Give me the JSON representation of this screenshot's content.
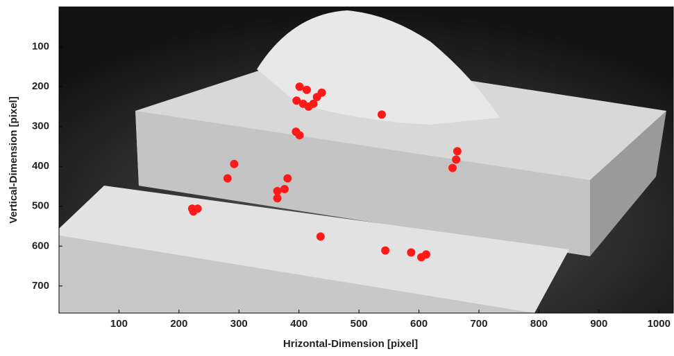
{
  "chart_data": {
    "type": "scatter",
    "x_label": "Hrizontal-Dimension [pixel]",
    "y_label": "Vertical-Dimension [pixel]",
    "xlim": [
      0,
      1024
    ],
    "ylim": [
      768,
      0
    ],
    "xticks": [
      100,
      200,
      300,
      400,
      500,
      600,
      700,
      800,
      900,
      1000
    ],
    "yticks": [
      100,
      200,
      300,
      400,
      500,
      600,
      700
    ],
    "color": "#ff1a1a",
    "x": [
      401,
      413,
      430,
      407,
      424,
      396,
      438,
      416,
      538,
      395,
      401,
      292,
      281,
      381,
      364,
      376,
      364,
      222,
      231,
      224,
      664,
      662,
      656,
      436,
      544,
      587,
      604,
      612
    ],
    "values": [
      200,
      208,
      226,
      243,
      243,
      235,
      215,
      250,
      270,
      313,
      322,
      394,
      430,
      430,
      462,
      457,
      480,
      506,
      506,
      513,
      362,
      383,
      404,
      576,
      611,
      616,
      628,
      621
    ]
  }
}
